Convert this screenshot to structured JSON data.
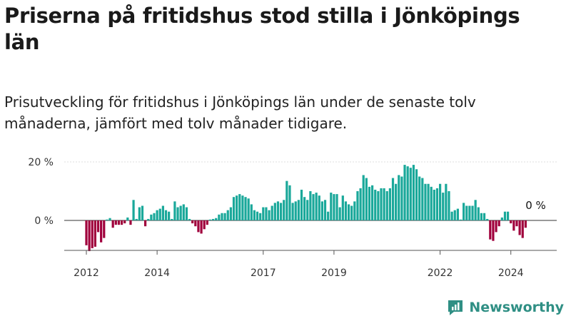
{
  "header": {
    "title": "Priserna på fritidshus stod stilla i Jönköpings län",
    "subtitle": "Prisutveckling för fritidshus i Jönköpings län under de senaste tolv månaderna, jämfört med tolv månader tidigare."
  },
  "brand": {
    "name": "Newsworthy",
    "icon": "newsworthy-logo-icon"
  },
  "colors": {
    "positive": "#1aa89a",
    "negative": "#a0003c",
    "axis": "#555555",
    "grid": "#dddddd"
  },
  "chart_data": {
    "type": "bar",
    "title": "Priserna på fritidshus stod stilla i Jönköpings län",
    "xlabel": "",
    "ylabel": "",
    "ylim": [
      -12,
      21
    ],
    "grid": true,
    "y_ticks": [
      {
        "value": 0,
        "label": "0 %"
      },
      {
        "value": 20,
        "label": "20 %"
      }
    ],
    "x_ticks": [
      {
        "index": 0,
        "label": "2012"
      },
      {
        "index": 24,
        "label": "2014"
      },
      {
        "index": 60,
        "label": "2017"
      },
      {
        "index": 84,
        "label": "2019"
      },
      {
        "index": 120,
        "label": "2022"
      },
      {
        "index": 144,
        "label": "2024"
      }
    ],
    "annotation": {
      "index": 150,
      "value": 0,
      "label": "0 %"
    },
    "start": "2012-01",
    "values": [
      -8.5,
      -10.5,
      -9.5,
      -9.0,
      -4.0,
      -7.5,
      -6.0,
      0.3,
      0.8,
      -2.5,
      -1.5,
      -1.5,
      -1.5,
      -1.0,
      1.0,
      -1.5,
      7.0,
      0.5,
      4.5,
      5.0,
      -2.0,
      0.5,
      2.0,
      2.5,
      3.5,
      4.0,
      5.0,
      3.5,
      3.0,
      0.5,
      6.5,
      4.5,
      5.0,
      5.5,
      4.5,
      0.5,
      -1.0,
      -2.0,
      -4.0,
      -4.5,
      -3.0,
      -1.5,
      0.3,
      0.5,
      0.8,
      2.0,
      2.5,
      2.5,
      3.5,
      4.5,
      8.0,
      8.5,
      9.0,
      8.5,
      8.0,
      7.5,
      5.5,
      3.5,
      3.0,
      2.5,
      4.5,
      4.5,
      3.5,
      5.0,
      6.0,
      6.5,
      6.0,
      7.0,
      13.5,
      12.0,
      6.0,
      6.5,
      7.0,
      10.5,
      8.0,
      7.0,
      10.0,
      9.0,
      9.5,
      8.5,
      6.5,
      7.0,
      3.0,
      9.5,
      9.0,
      9.0,
      4.5,
      8.5,
      6.5,
      5.5,
      5.0,
      6.5,
      10.0,
      11.0,
      15.5,
      14.5,
      11.5,
      12.0,
      10.5,
      10.0,
      11.0,
      11.0,
      10.0,
      11.0,
      14.5,
      12.5,
      15.5,
      15.0,
      19.0,
      18.5,
      18.0,
      19.0,
      17.5,
      15.0,
      14.5,
      12.5,
      12.5,
      11.5,
      10.5,
      11.0,
      12.5,
      9.5,
      12.5,
      10.0,
      3.0,
      3.5,
      4.0,
      0.3,
      6.0,
      5.0,
      5.0,
      5.0,
      7.0,
      4.5,
      2.5,
      2.5,
      0.5,
      -6.5,
      -7.0,
      -4.0,
      -2.0,
      1.0,
      3.0,
      3.0,
      -1.0,
      -3.5,
      -2.0,
      -5.0,
      -6.0,
      -2.5
    ]
  }
}
